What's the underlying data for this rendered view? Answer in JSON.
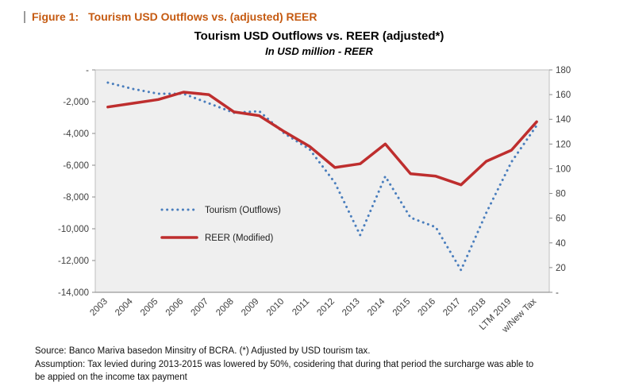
{
  "caption": {
    "label": "Figure 1:",
    "title": "Tourism USD Outflows vs. (adjusted) REER"
  },
  "chart_data": {
    "type": "line",
    "title": "Tourism USD Outflows vs. REER (adjusted*)",
    "subtitle": "In USD million - REER",
    "categories": [
      "2003",
      "2004",
      "2005",
      "2006",
      "2007",
      "2008",
      "2009",
      "2010",
      "2011",
      "2012",
      "2013",
      "2014",
      "2015",
      "2016",
      "2017",
      "2018",
      "LTM 2019",
      "w/New Tax"
    ],
    "series": [
      {
        "name": "Tourism (Outflows)",
        "axis": "left",
        "style": "dotted",
        "color": "#4A7EBD",
        "values": [
          -800,
          -1200,
          -1500,
          -1500,
          -2100,
          -2700,
          -2600,
          -4000,
          -5000,
          -7100,
          -10400,
          -6700,
          -9300,
          -9900,
          -12600,
          -9000,
          -5800,
          -3500
        ]
      },
      {
        "name": "REER (Modified)",
        "axis": "right",
        "style": "solid",
        "color": "#BE2E2E",
        "values": [
          150,
          153,
          156,
          162,
          160,
          146,
          143,
          130,
          118,
          101,
          104,
          120,
          96,
          94,
          87,
          106,
          115,
          138
        ]
      }
    ],
    "left_axis": {
      "min": -14000,
      "max": 0,
      "labels": [
        "-",
        "-2,000",
        "-4,000",
        "-6,000",
        "-8,000",
        "-10,000",
        "-12,000",
        "-14,000"
      ]
    },
    "right_axis": {
      "min": 0,
      "max": 180,
      "labels": [
        "180",
        "160",
        "140",
        "120",
        "100",
        "80",
        "60",
        "40",
        "20",
        "-"
      ]
    },
    "legend_position": "inside-left",
    "plot_background": "#EFEFEF"
  },
  "footnotes": {
    "line1": "Source: Banco Mariva basedon Minsitry of BCRA. (*) Adjusted by USD tourism tax.",
    "line2": "Assumption: Tax levied during 2013-2015 was lowered by 50%, cosidering that during that period the surcharge was able to",
    "line3": "be appied on the income tax payment"
  },
  "colors": {
    "caption_accent": "#C55A11",
    "tourism_line": "#4A7EBD",
    "reer_line": "#BE2E2E",
    "plot_background": "#EFEFEF"
  }
}
